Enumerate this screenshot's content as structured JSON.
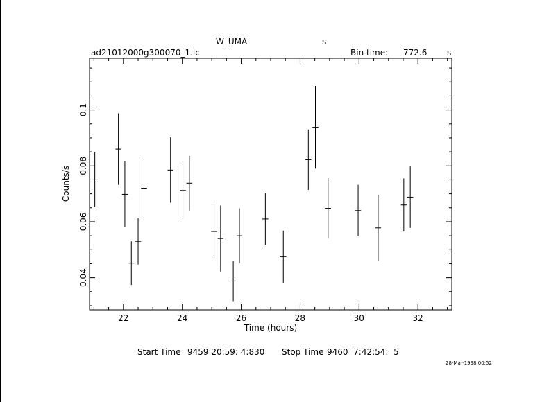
{
  "header": {
    "object": "W_UMA",
    "object_unit": "s",
    "filename": "ad21012000g300070_1.lc",
    "bin_label": "Bin time:",
    "bin_value": "772.6",
    "bin_unit": "s"
  },
  "footer": {
    "start_label": "Start Time",
    "start_value": "9459 20:59: 4:830",
    "stop_label": "Stop Time",
    "stop_value": "9460  7:42:54:  5",
    "date_stamp": "28-Mar-1998 00:52"
  },
  "chart_data": {
    "type": "scatter",
    "title": "",
    "xlabel": "Time (hours)",
    "ylabel": "Counts/s",
    "xlim": [
      20.85,
      33.15
    ],
    "ylim": [
      0.0285,
      0.1185
    ],
    "xticks": [
      22,
      24,
      26,
      28,
      30,
      32
    ],
    "yticks": [
      0.04,
      0.06,
      0.08,
      0.1
    ],
    "ytick_labels": [
      "0.04",
      "0.06",
      "0.08",
      "0.1"
    ],
    "grid": false,
    "series": [
      {
        "x": [
          21.03,
          21.83,
          22.05,
          22.27,
          22.5,
          22.7,
          23.6,
          24.02,
          24.24,
          25.08,
          25.3,
          25.73,
          25.94,
          26.82,
          27.43,
          28.28,
          28.52,
          28.95,
          29.97,
          30.65,
          31.52,
          31.74
        ],
        "y": [
          0.075,
          0.086,
          0.0698,
          0.0452,
          0.053,
          0.072,
          0.0785,
          0.0712,
          0.0738,
          0.0565,
          0.054,
          0.0388,
          0.055,
          0.061,
          0.0475,
          0.0822,
          0.0938,
          0.0648,
          0.064,
          0.0578,
          0.066,
          0.0688
        ],
        "yerr": [
          0.0098,
          0.0128,
          0.0118,
          0.0078,
          0.0083,
          0.0105,
          0.0117,
          0.0103,
          0.0098,
          0.0095,
          0.0118,
          0.0072,
          0.0098,
          0.0092,
          0.0093,
          0.0108,
          0.0148,
          0.0108,
          0.0092,
          0.0118,
          0.0095,
          0.011
        ],
        "xerr": 0.1
      }
    ]
  }
}
